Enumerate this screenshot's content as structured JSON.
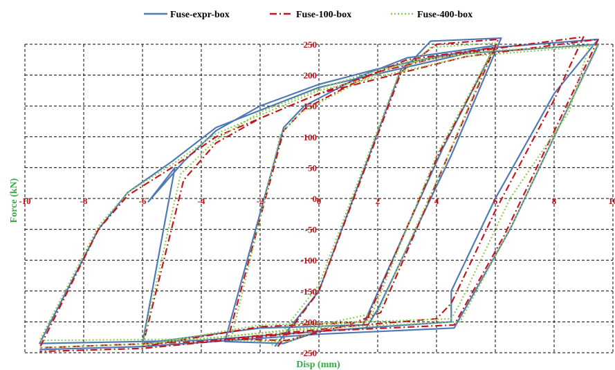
{
  "chart_data": {
    "type": "line",
    "title": "",
    "xlabel": "Disp (mm)",
    "ylabel": "Force (kN)",
    "xlim": [
      -10,
      10
    ],
    "ylim": [
      -250,
      250
    ],
    "x_ticks": [
      "-10",
      "-8",
      "-6",
      "-4",
      "-2",
      "0",
      "2",
      "4",
      "6",
      "8",
      "10"
    ],
    "y_ticks": [
      "250",
      "200",
      "150",
      "100",
      "50",
      "0",
      "-50",
      "-100",
      "-150",
      "-200",
      "-250"
    ],
    "grid": true,
    "legend_position": "top",
    "series": [
      {
        "name": "Fuse-expr-box",
        "color": "#4f7ab5",
        "style": "solid",
        "loops": [
          [
            [
              -1.5,
              -240
            ],
            [
              0,
              -150
            ],
            [
              2.8,
              210
            ],
            [
              3.2,
              225
            ],
            [
              3.8,
              255
            ],
            [
              6.2,
              260
            ],
            [
              4.5,
              70
            ],
            [
              2.0,
              -180
            ],
            [
              1.6,
              -210
            ],
            [
              0,
              -215
            ],
            [
              -1.2,
              -235
            ],
            [
              -3.2,
              -232
            ],
            [
              -1.2,
              115
            ],
            [
              -0.5,
              150
            ],
            [
              1.5,
              200
            ],
            [
              3.0,
              228
            ],
            [
              6.0,
              248
            ],
            [
              4.2,
              80
            ],
            [
              1.5,
              -205
            ],
            [
              -2,
              -210
            ],
            [
              -6,
              -235
            ],
            [
              -4.9,
              50
            ],
            [
              -5.8,
              -5
            ],
            [
              -4.6,
              60
            ],
            [
              -3.5,
              110
            ],
            [
              -2,
              150
            ],
            [
              0,
              185
            ],
            [
              2,
              210
            ],
            [
              4,
              230
            ],
            [
              6,
              245
            ],
            [
              9.5,
              258
            ],
            [
              8,
              170
            ],
            [
              6,
              0
            ],
            [
              4.5,
              -150
            ],
            [
              4.5,
              -200
            ],
            [
              1.5,
              -210
            ],
            [
              -4,
              -230
            ],
            [
              -9.5,
              -235
            ],
            [
              -7.5,
              -50
            ],
            [
              -6.5,
              10
            ],
            [
              -5,
              60
            ],
            [
              -3.5,
              115
            ],
            [
              0,
              180
            ],
            [
              5,
              235
            ],
            [
              9.5,
              250
            ],
            [
              6.5,
              -50
            ],
            [
              4.6,
              -210
            ],
            [
              0,
              -220
            ],
            [
              -6,
              -240
            ],
            [
              -9.5,
              -245
            ]
          ]
        ]
      },
      {
        "name": "Fuse-100-box",
        "color": "#c4161c",
        "style": "dashdot",
        "loops": [
          [
            [
              -1.4,
              -240
            ],
            [
              0,
              -150
            ],
            [
              2.8,
              205
            ],
            [
              3.3,
              225
            ],
            [
              4.0,
              250
            ],
            [
              6.1,
              258
            ],
            [
              4.4,
              70
            ],
            [
              2.1,
              -185
            ],
            [
              1.0,
              -205
            ],
            [
              -1.1,
              -230
            ],
            [
              -3.1,
              -228
            ],
            [
              -1.2,
              110
            ],
            [
              -0.5,
              145
            ],
            [
              1.5,
              195
            ],
            [
              3.0,
              225
            ],
            [
              6.0,
              245
            ],
            [
              4.1,
              75
            ],
            [
              1.6,
              -200
            ],
            [
              -2,
              -208
            ],
            [
              -6,
              -240
            ],
            [
              -4.6,
              30
            ],
            [
              -3.5,
              90
            ],
            [
              -2,
              130
            ],
            [
              0,
              170
            ],
            [
              2,
              205
            ],
            [
              4,
              228
            ],
            [
              6,
              243
            ],
            [
              9.0,
              262
            ],
            [
              8,
              160
            ],
            [
              6,
              -20
            ],
            [
              4.5,
              -170
            ],
            [
              4,
              -195
            ],
            [
              1.5,
              -205
            ],
            [
              -4,
              -232
            ],
            [
              -9.5,
              -242
            ],
            [
              -7.5,
              -50
            ],
            [
              -6.5,
              5
            ],
            [
              -5,
              50
            ],
            [
              -3.5,
              100
            ],
            [
              0,
              170
            ],
            [
              5,
              230
            ],
            [
              9.5,
              258
            ],
            [
              6.3,
              -60
            ],
            [
              4.6,
              -205
            ],
            [
              0,
              -215
            ],
            [
              -6,
              -243
            ],
            [
              -9.5,
              -248
            ]
          ]
        ]
      },
      {
        "name": "Fuse-400-box",
        "color": "#8ccc4a",
        "style": "dotted",
        "loops": [
          [
            [
              -1.6,
              -238
            ],
            [
              0,
              -140
            ],
            [
              2.7,
              200
            ],
            [
              3.2,
              220
            ],
            [
              3.8,
              245
            ],
            [
              6.0,
              252
            ],
            [
              4.3,
              60
            ],
            [
              2.0,
              -185
            ],
            [
              0.5,
              -200
            ],
            [
              -1.0,
              -232
            ],
            [
              -3.0,
              -230
            ],
            [
              -1.3,
              105
            ],
            [
              -0.6,
              140
            ],
            [
              1.4,
              190
            ],
            [
              3.0,
              222
            ],
            [
              5.9,
              240
            ],
            [
              4.0,
              70
            ],
            [
              1.7,
              -200
            ],
            [
              -2,
              -205
            ],
            [
              -6,
              -238
            ],
            [
              -4.7,
              40
            ],
            [
              -3.5,
              95
            ],
            [
              -2,
              140
            ],
            [
              0,
              178
            ],
            [
              2,
              208
            ],
            [
              4,
              228
            ],
            [
              6,
              240
            ],
            [
              9.2,
              248
            ],
            [
              8.5,
              140
            ],
            [
              6.5,
              0
            ],
            [
              4.8,
              -170
            ],
            [
              4.5,
              -195
            ],
            [
              1.5,
              -200
            ],
            [
              -4,
              -228
            ],
            [
              -9.5,
              -230
            ],
            [
              -7.5,
              -45
            ],
            [
              -6.5,
              10
            ],
            [
              -5,
              55
            ],
            [
              -3.5,
              105
            ],
            [
              0,
              175
            ],
            [
              5,
              230
            ],
            [
              9.5,
              248
            ],
            [
              6.6,
              -40
            ],
            [
              4.8,
              -200
            ],
            [
              0,
              -210
            ],
            [
              -6,
              -236
            ],
            [
              -9.5,
              -242
            ]
          ]
        ]
      }
    ]
  }
}
